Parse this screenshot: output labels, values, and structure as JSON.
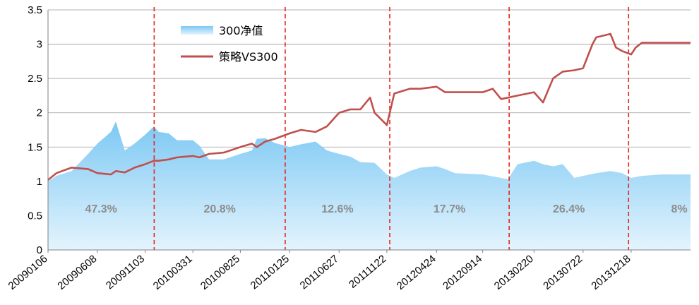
{
  "chart_data": {
    "type": "line",
    "title": "",
    "xlabel": "",
    "ylabel": "",
    "ylim": [
      0,
      3.5
    ],
    "yticks": [
      "0",
      "0.5",
      "1",
      "1.5",
      "2",
      "2.5",
      "3",
      "3.5"
    ],
    "grid": "horizontal",
    "legend_position": "top-left",
    "x_tick_labels": [
      "20090106",
      "20090608",
      "20091103",
      "20100331",
      "20100825",
      "20110125",
      "20110627",
      "20111122",
      "20120424",
      "20120914",
      "20130220",
      "20130722",
      "20131218"
    ],
    "series": [
      {
        "name": "300净值",
        "style": "area",
        "color": "#8fd0f5",
        "points": [
          [
            "20090106",
            1.0
          ],
          [
            "20090201",
            1.08
          ],
          [
            "20090320",
            1.15
          ],
          [
            "20090510",
            1.4
          ],
          [
            "20090608",
            1.55
          ],
          [
            "20090720",
            1.72
          ],
          [
            "20090804",
            1.87
          ],
          [
            "20090901",
            1.45
          ],
          [
            "20091001",
            1.55
          ],
          [
            "20091103",
            1.68
          ],
          [
            "20091130",
            1.8
          ],
          [
            "20091215",
            1.72
          ],
          [
            "20100115",
            1.7
          ],
          [
            "20100210",
            1.6
          ],
          [
            "20100331",
            1.6
          ],
          [
            "20100420",
            1.52
          ],
          [
            "20100520",
            1.32
          ],
          [
            "20100705",
            1.32
          ],
          [
            "20100825",
            1.4
          ],
          [
            "20100930",
            1.45
          ],
          [
            "20101015",
            1.62
          ],
          [
            "20101110",
            1.63
          ],
          [
            "20101210",
            1.56
          ],
          [
            "20110125",
            1.5
          ],
          [
            "20110301",
            1.54
          ],
          [
            "20110415",
            1.58
          ],
          [
            "20110520",
            1.45
          ],
          [
            "20110627",
            1.4
          ],
          [
            "20110801",
            1.36
          ],
          [
            "20110901",
            1.28
          ],
          [
            "20111015",
            1.27
          ],
          [
            "20111122",
            1.1
          ],
          [
            "20111215",
            1.05
          ],
          [
            "20120201",
            1.15
          ],
          [
            "20120305",
            1.2
          ],
          [
            "20120424",
            1.22
          ],
          [
            "20120520",
            1.18
          ],
          [
            "20120620",
            1.12
          ],
          [
            "20120914",
            1.1
          ],
          [
            "20121201",
            1.03
          ],
          [
            "20121231",
            1.25
          ],
          [
            "20130220",
            1.3
          ],
          [
            "20130320",
            1.25
          ],
          [
            "20130420",
            1.22
          ],
          [
            "20130520",
            1.25
          ],
          [
            "20130625",
            1.05
          ],
          [
            "20130722",
            1.08
          ],
          [
            "20130901",
            1.12
          ],
          [
            "20131015",
            1.15
          ],
          [
            "20131120",
            1.12
          ],
          [
            "20131218",
            1.05
          ],
          [
            "20140120",
            1.08
          ],
          [
            "20140320",
            1.1
          ],
          [
            "20140620",
            1.1
          ]
        ]
      },
      {
        "name": "策略VS300",
        "style": "line",
        "color": "#c0504d",
        "points": [
          [
            "20090106",
            1.02
          ],
          [
            "20090201",
            1.12
          ],
          [
            "20090320",
            1.2
          ],
          [
            "20090510",
            1.18
          ],
          [
            "20090608",
            1.12
          ],
          [
            "20090720",
            1.1
          ],
          [
            "20090804",
            1.15
          ],
          [
            "20090901",
            1.13
          ],
          [
            "20091001",
            1.2
          ],
          [
            "20091103",
            1.25
          ],
          [
            "20091130",
            1.3
          ],
          [
            "20091215",
            1.3
          ],
          [
            "20100115",
            1.32
          ],
          [
            "20100210",
            1.35
          ],
          [
            "20100331",
            1.37
          ],
          [
            "20100420",
            1.35
          ],
          [
            "20100520",
            1.4
          ],
          [
            "20100705",
            1.42
          ],
          [
            "20100825",
            1.5
          ],
          [
            "20100930",
            1.55
          ],
          [
            "20101015",
            1.5
          ],
          [
            "20101110",
            1.58
          ],
          [
            "20101210",
            1.62
          ],
          [
            "20110125",
            1.7
          ],
          [
            "20110301",
            1.75
          ],
          [
            "20110415",
            1.72
          ],
          [
            "20110520",
            1.8
          ],
          [
            "20110627",
            2.0
          ],
          [
            "20110801",
            2.05
          ],
          [
            "20110901",
            2.05
          ],
          [
            "20111001",
            2.22
          ],
          [
            "20111015",
            2.0
          ],
          [
            "20111122",
            1.82
          ],
          [
            "20111215",
            2.28
          ],
          [
            "20120201",
            2.35
          ],
          [
            "20120305",
            2.35
          ],
          [
            "20120424",
            2.38
          ],
          [
            "20120520",
            2.3
          ],
          [
            "20120620",
            2.3
          ],
          [
            "20120914",
            2.3
          ],
          [
            "20121015",
            2.35
          ],
          [
            "20121110",
            2.2
          ],
          [
            "20121201",
            2.22
          ],
          [
            "20121231",
            2.25
          ],
          [
            "20130220",
            2.3
          ],
          [
            "20130320",
            2.15
          ],
          [
            "20130420",
            2.5
          ],
          [
            "20130520",
            2.6
          ],
          [
            "20130625",
            2.62
          ],
          [
            "20130722",
            2.65
          ],
          [
            "20130820",
            3.0
          ],
          [
            "20130901",
            3.1
          ],
          [
            "20131015",
            3.15
          ],
          [
            "20131101",
            2.95
          ],
          [
            "20131120",
            2.9
          ],
          [
            "20131218",
            2.85
          ],
          [
            "20140101",
            2.95
          ],
          [
            "20140120",
            3.02
          ],
          [
            "20140320",
            3.02
          ],
          [
            "20140620",
            3.02
          ]
        ]
      }
    ],
    "period_dividers": [
      "20091201",
      "20110111",
      "20111201",
      "20121205",
      "20131210"
    ],
    "period_labels": [
      "47.3%",
      "20.8%",
      "12.6%",
      "17.7%",
      "26.4%",
      "8%"
    ]
  }
}
